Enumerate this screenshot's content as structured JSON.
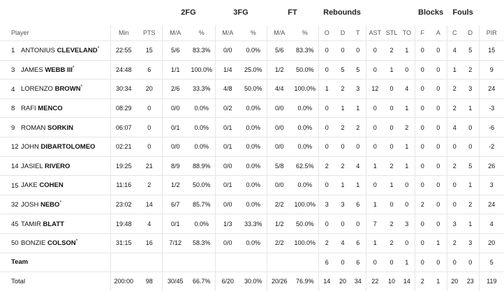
{
  "groups": {
    "fg2": "2FG",
    "fg3": "3FG",
    "ft": "FT",
    "rebounds": "Rebounds",
    "blocks": "Blocks",
    "fouls": "Fouls"
  },
  "headers": [
    "Player",
    "Min",
    "PTS",
    "M/A",
    "%",
    "M/A",
    "%",
    "M/A",
    "%",
    "O",
    "D",
    "T",
    "AST",
    "STL",
    "TO",
    "F",
    "A",
    "C",
    "D",
    "PIR"
  ],
  "rows": [
    {
      "num": "1",
      "first": "ANTONIUS",
      "last": "CLEVELAND",
      "star": "*",
      "stats": [
        "22:55",
        "15",
        "5/6",
        "83.3%",
        "0/0",
        "0.0%",
        "5/6",
        "83.3%",
        "0",
        "0",
        "0",
        "0",
        "2",
        "1",
        "0",
        "0",
        "4",
        "5",
        "15"
      ]
    },
    {
      "num": "3",
      "first": "JAMES",
      "last": "WEBB III",
      "star": "*",
      "stats": [
        "24:48",
        "6",
        "1/1",
        "100.0%",
        "1/4",
        "25.0%",
        "1/2",
        "50.0%",
        "0",
        "5",
        "5",
        "0",
        "1",
        "0",
        "0",
        "0",
        "1",
        "2",
        "9"
      ]
    },
    {
      "num": "4",
      "first": "LORENZO",
      "last": "BROWN",
      "star": "*",
      "stats": [
        "30:34",
        "20",
        "2/6",
        "33.3%",
        "4/8",
        "50.0%",
        "4/4",
        "100.0%",
        "1",
        "2",
        "3",
        "12",
        "0",
        "4",
        "0",
        "0",
        "2",
        "3",
        "24"
      ]
    },
    {
      "num": "8",
      "first": "RAFI",
      "last": "MENCO",
      "star": "",
      "stats": [
        "08:29",
        "0",
        "0/0",
        "0.0%",
        "0/2",
        "0.0%",
        "0/0",
        "0.0%",
        "0",
        "1",
        "1",
        "0",
        "0",
        "1",
        "0",
        "0",
        "2",
        "1",
        "-3"
      ]
    },
    {
      "num": "9",
      "first": "ROMAN",
      "last": "SORKIN",
      "star": "",
      "stats": [
        "06:07",
        "0",
        "0/1",
        "0.0%",
        "0/1",
        "0.0%",
        "0/0",
        "0.0%",
        "0",
        "2",
        "2",
        "0",
        "0",
        "2",
        "0",
        "0",
        "4",
        "0",
        "-6"
      ]
    },
    {
      "num": "12",
      "first": "JOHN",
      "last": "DIBARTOLOMEO",
      "star": "",
      "stats": [
        "02:21",
        "0",
        "0/0",
        "0.0%",
        "0/1",
        "0.0%",
        "0/0",
        "0.0%",
        "0",
        "0",
        "0",
        "0",
        "0",
        "1",
        "0",
        "0",
        "0",
        "0",
        "-2"
      ]
    },
    {
      "num": "14",
      "first": "JASIEL",
      "last": "RIVERO",
      "star": "",
      "stats": [
        "19:25",
        "21",
        "8/9",
        "88.9%",
        "0/0",
        "0.0%",
        "5/8",
        "62.5%",
        "2",
        "2",
        "4",
        "1",
        "2",
        "1",
        "0",
        "0",
        "2",
        "5",
        "26"
      ]
    },
    {
      "num": "15",
      "first": "JAKE",
      "last": "COHEN",
      "star": "",
      "stats": [
        "11:16",
        "2",
        "1/2",
        "50.0%",
        "0/1",
        "0.0%",
        "0/0",
        "0.0%",
        "0",
        "1",
        "1",
        "0",
        "1",
        "0",
        "0",
        "0",
        "0",
        "1",
        "3"
      ]
    },
    {
      "num": "32",
      "first": "JOSH",
      "last": "NEBO",
      "star": "*",
      "stats": [
        "23:02",
        "14",
        "6/7",
        "85.7%",
        "0/0",
        "0.0%",
        "2/2",
        "100.0%",
        "3",
        "3",
        "6",
        "1",
        "0",
        "0",
        "2",
        "0",
        "0",
        "2",
        "24"
      ]
    },
    {
      "num": "45",
      "first": "TAMIR",
      "last": "BLATT",
      "star": "",
      "stats": [
        "19:48",
        "4",
        "0/1",
        "0.0%",
        "1/3",
        "33.3%",
        "1/2",
        "50.0%",
        "0",
        "0",
        "0",
        "7",
        "2",
        "3",
        "0",
        "0",
        "3",
        "1",
        "4"
      ]
    },
    {
      "num": "50",
      "first": "BONZIE",
      "last": "COLSON",
      "star": "*",
      "stats": [
        "31:15",
        "16",
        "7/12",
        "58.3%",
        "0/0",
        "0.0%",
        "2/2",
        "100.0%",
        "2",
        "4",
        "6",
        "1",
        "2",
        "0",
        "0",
        "1",
        "2",
        "3",
        "20"
      ]
    }
  ],
  "team": {
    "label": "Team",
    "stats": [
      "",
      "",
      "",
      "",
      "",
      "",
      "",
      "",
      "6",
      "0",
      "6",
      "0",
      "0",
      "1",
      "0",
      "0",
      "0",
      "0",
      "5"
    ]
  },
  "total": {
    "label": "Total",
    "stats": [
      "200:00",
      "98",
      "30/45",
      "66.7%",
      "6/20",
      "30.0%",
      "20/26",
      "76.9%",
      "14",
      "20",
      "34",
      "22",
      "10",
      "14",
      "2",
      "1",
      "20",
      "23",
      "119"
    ]
  }
}
